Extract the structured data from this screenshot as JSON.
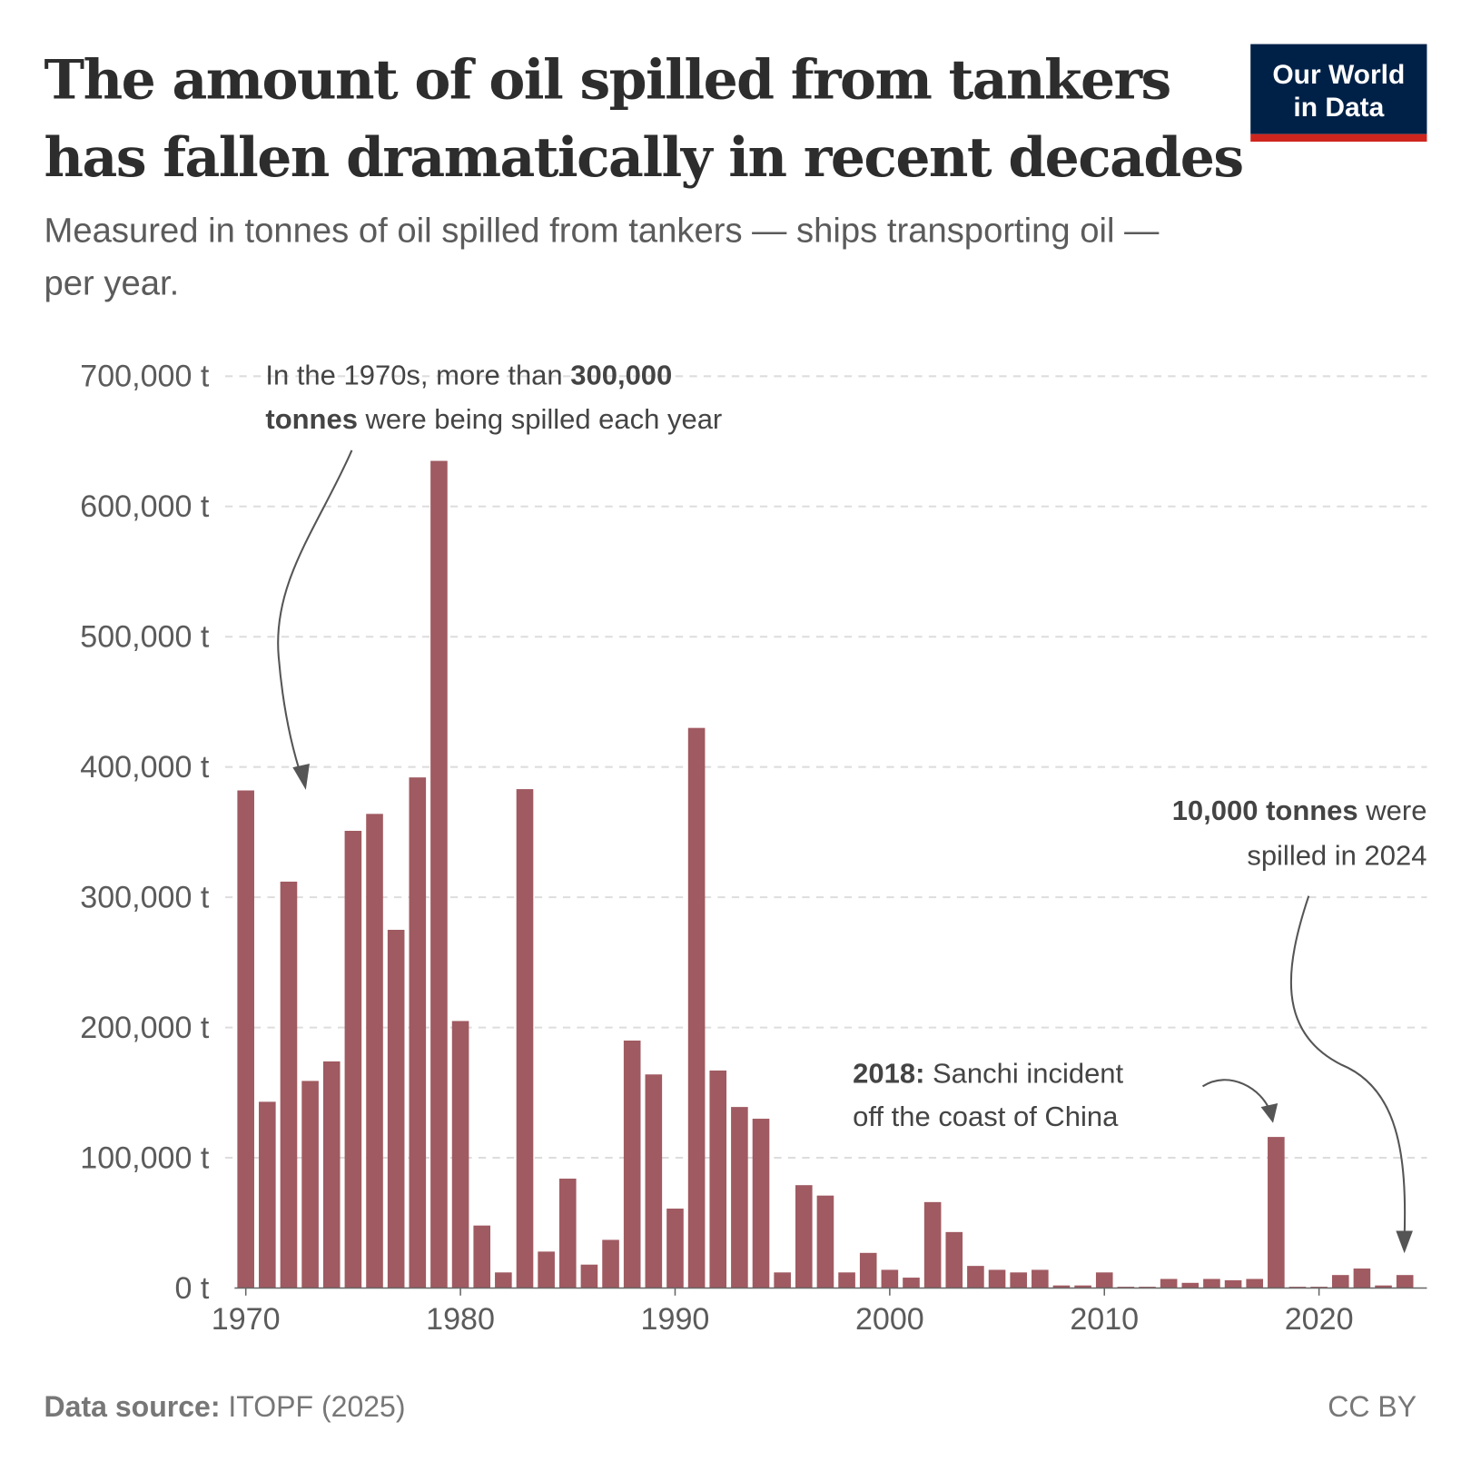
{
  "header": {
    "title_line1": "The amount of oil spilled from tankers",
    "title_line2": "has fallen dramatically in recent decades",
    "subtitle_line1": "Measured in tonnes of oil spilled from tankers — ships transporting oil —",
    "subtitle_line2": "per year.",
    "logo_line1": "Our World",
    "logo_line2": "in Data"
  },
  "colors": {
    "bar": "#a05a61",
    "logo_bg": "#002147",
    "logo_accent": "#ce261e",
    "grid": "#dddddd"
  },
  "chart_data": {
    "type": "bar",
    "title": "The amount of oil spilled from tankers has fallen dramatically in recent decades",
    "ylabel": "",
    "xlabel": "",
    "unit": "t",
    "ylim": [
      0,
      700000
    ],
    "grid": "horizontal dashed",
    "y_ticks": [
      "0 t",
      "100,000 t",
      "200,000 t",
      "300,000 t",
      "400,000 t",
      "500,000 t",
      "600,000 t",
      "700,000 t"
    ],
    "x_ticks": [
      "1970",
      "1980",
      "1990",
      "2000",
      "2010",
      "2020"
    ],
    "categories": [
      1970,
      1971,
      1972,
      1973,
      1974,
      1975,
      1976,
      1977,
      1978,
      1979,
      1980,
      1981,
      1982,
      1983,
      1984,
      1985,
      1986,
      1987,
      1988,
      1989,
      1990,
      1991,
      1992,
      1993,
      1994,
      1995,
      1996,
      1997,
      1998,
      1999,
      2000,
      2001,
      2002,
      2003,
      2004,
      2005,
      2006,
      2007,
      2008,
      2009,
      2010,
      2011,
      2012,
      2013,
      2014,
      2015,
      2016,
      2017,
      2018,
      2019,
      2020,
      2021,
      2022,
      2023,
      2024
    ],
    "values": [
      382000,
      143000,
      312000,
      159000,
      174000,
      351000,
      364000,
      275000,
      392000,
      635000,
      205000,
      48000,
      12000,
      383000,
      28000,
      84000,
      18000,
      37000,
      190000,
      164000,
      61000,
      430000,
      167000,
      139000,
      130000,
      12000,
      79000,
      71000,
      12000,
      27000,
      14000,
      8000,
      66000,
      43000,
      17000,
      14000,
      12000,
      14000,
      2000,
      2000,
      12000,
      1000,
      1000,
      7000,
      4000,
      7000,
      6000,
      7000,
      116000,
      1000,
      1000,
      10000,
      15000,
      2000,
      10000
    ],
    "annotations": {
      "a1_line1_pre": "In the 1970s, more than ",
      "a1_line1_bold": "300,000",
      "a1_line2_bold": "tonnes",
      "a1_line2_post": " were being spilled each year",
      "a2_line1_bold": "2018:",
      "a2_line1_post": " Sanchi incident",
      "a2_line2": "off the coast of China",
      "a3_line1_bold": "10,000 tonnes",
      "a3_line1_post": " were",
      "a3_line2": "spilled in 2024"
    }
  },
  "footer": {
    "source_label": "Data source:",
    "source_value": " ITOPF (2025)",
    "license": "CC BY"
  }
}
